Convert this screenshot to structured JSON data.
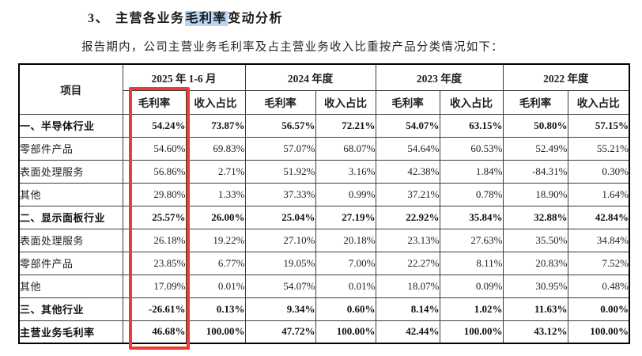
{
  "page": {
    "title_prefix": "3、",
    "title_before": "主营各业务",
    "title_highlight": "毛利率",
    "title_after": "变动分析",
    "subtitle": "报告期内，公司主营业务毛利率及占主营业务收入比重按产品分类情况如下：",
    "highlight_color": "#b5d5f2",
    "annotation_color": "#ee3b33"
  },
  "table": {
    "corner_header": "项目",
    "period_headers": [
      "2025 年 1-6 月",
      "2024 年度",
      "2023 年度",
      "2022 年度"
    ],
    "sub_headers": [
      "毛利率",
      "收入占比"
    ],
    "rows": [
      {
        "label": "一、半导体行业",
        "bold": true,
        "values": [
          "54.24%",
          "73.87%",
          "56.57%",
          "72.21%",
          "54.07%",
          "63.15%",
          "50.80%",
          "57.15%"
        ]
      },
      {
        "label": "零部件产品",
        "bold": false,
        "values": [
          "54.60%",
          "69.83%",
          "57.07%",
          "68.07%",
          "54.64%",
          "60.53%",
          "52.49%",
          "55.21%"
        ]
      },
      {
        "label": "表面处理服务",
        "bold": false,
        "values": [
          "56.86%",
          "2.71%",
          "51.92%",
          "3.16%",
          "42.38%",
          "1.84%",
          "-84.31%",
          "0.30%"
        ]
      },
      {
        "label": "其他",
        "bold": false,
        "values": [
          "29.80%",
          "1.33%",
          "37.33%",
          "0.99%",
          "37.21%",
          "0.78%",
          "18.90%",
          "1.64%"
        ]
      },
      {
        "label": "二、显示面板行业",
        "bold": true,
        "values": [
          "25.57%",
          "26.00%",
          "25.04%",
          "27.19%",
          "22.92%",
          "35.84%",
          "32.88%",
          "42.84%"
        ]
      },
      {
        "label": "表面处理服务",
        "bold": false,
        "values": [
          "26.18%",
          "19.22%",
          "27.10%",
          "20.18%",
          "23.13%",
          "27.63%",
          "35.50%",
          "34.84%"
        ]
      },
      {
        "label": "零部件产品",
        "bold": false,
        "values": [
          "23.85%",
          "6.77%",
          "19.05%",
          "7.00%",
          "22.27%",
          "8.11%",
          "20.83%",
          "7.52%"
        ]
      },
      {
        "label": "其他",
        "bold": false,
        "values": [
          "17.09%",
          "0.01%",
          "54.07%",
          "0.01%",
          "18.07%",
          "0.09%",
          "30.95%",
          "0.48%"
        ]
      },
      {
        "label": "三、其他行业",
        "bold": true,
        "values": [
          "-26.61%",
          "0.13%",
          "9.34%",
          "0.60%",
          "8.14%",
          "1.02%",
          "11.63%",
          "0.00%"
        ]
      },
      {
        "label": "主营业务毛利率",
        "bold": true,
        "values": [
          "46.68%",
          "100.00%",
          "47.72%",
          "100.00%",
          "42.44%",
          "100.00%",
          "43.12%",
          "100.00%"
        ]
      }
    ]
  }
}
